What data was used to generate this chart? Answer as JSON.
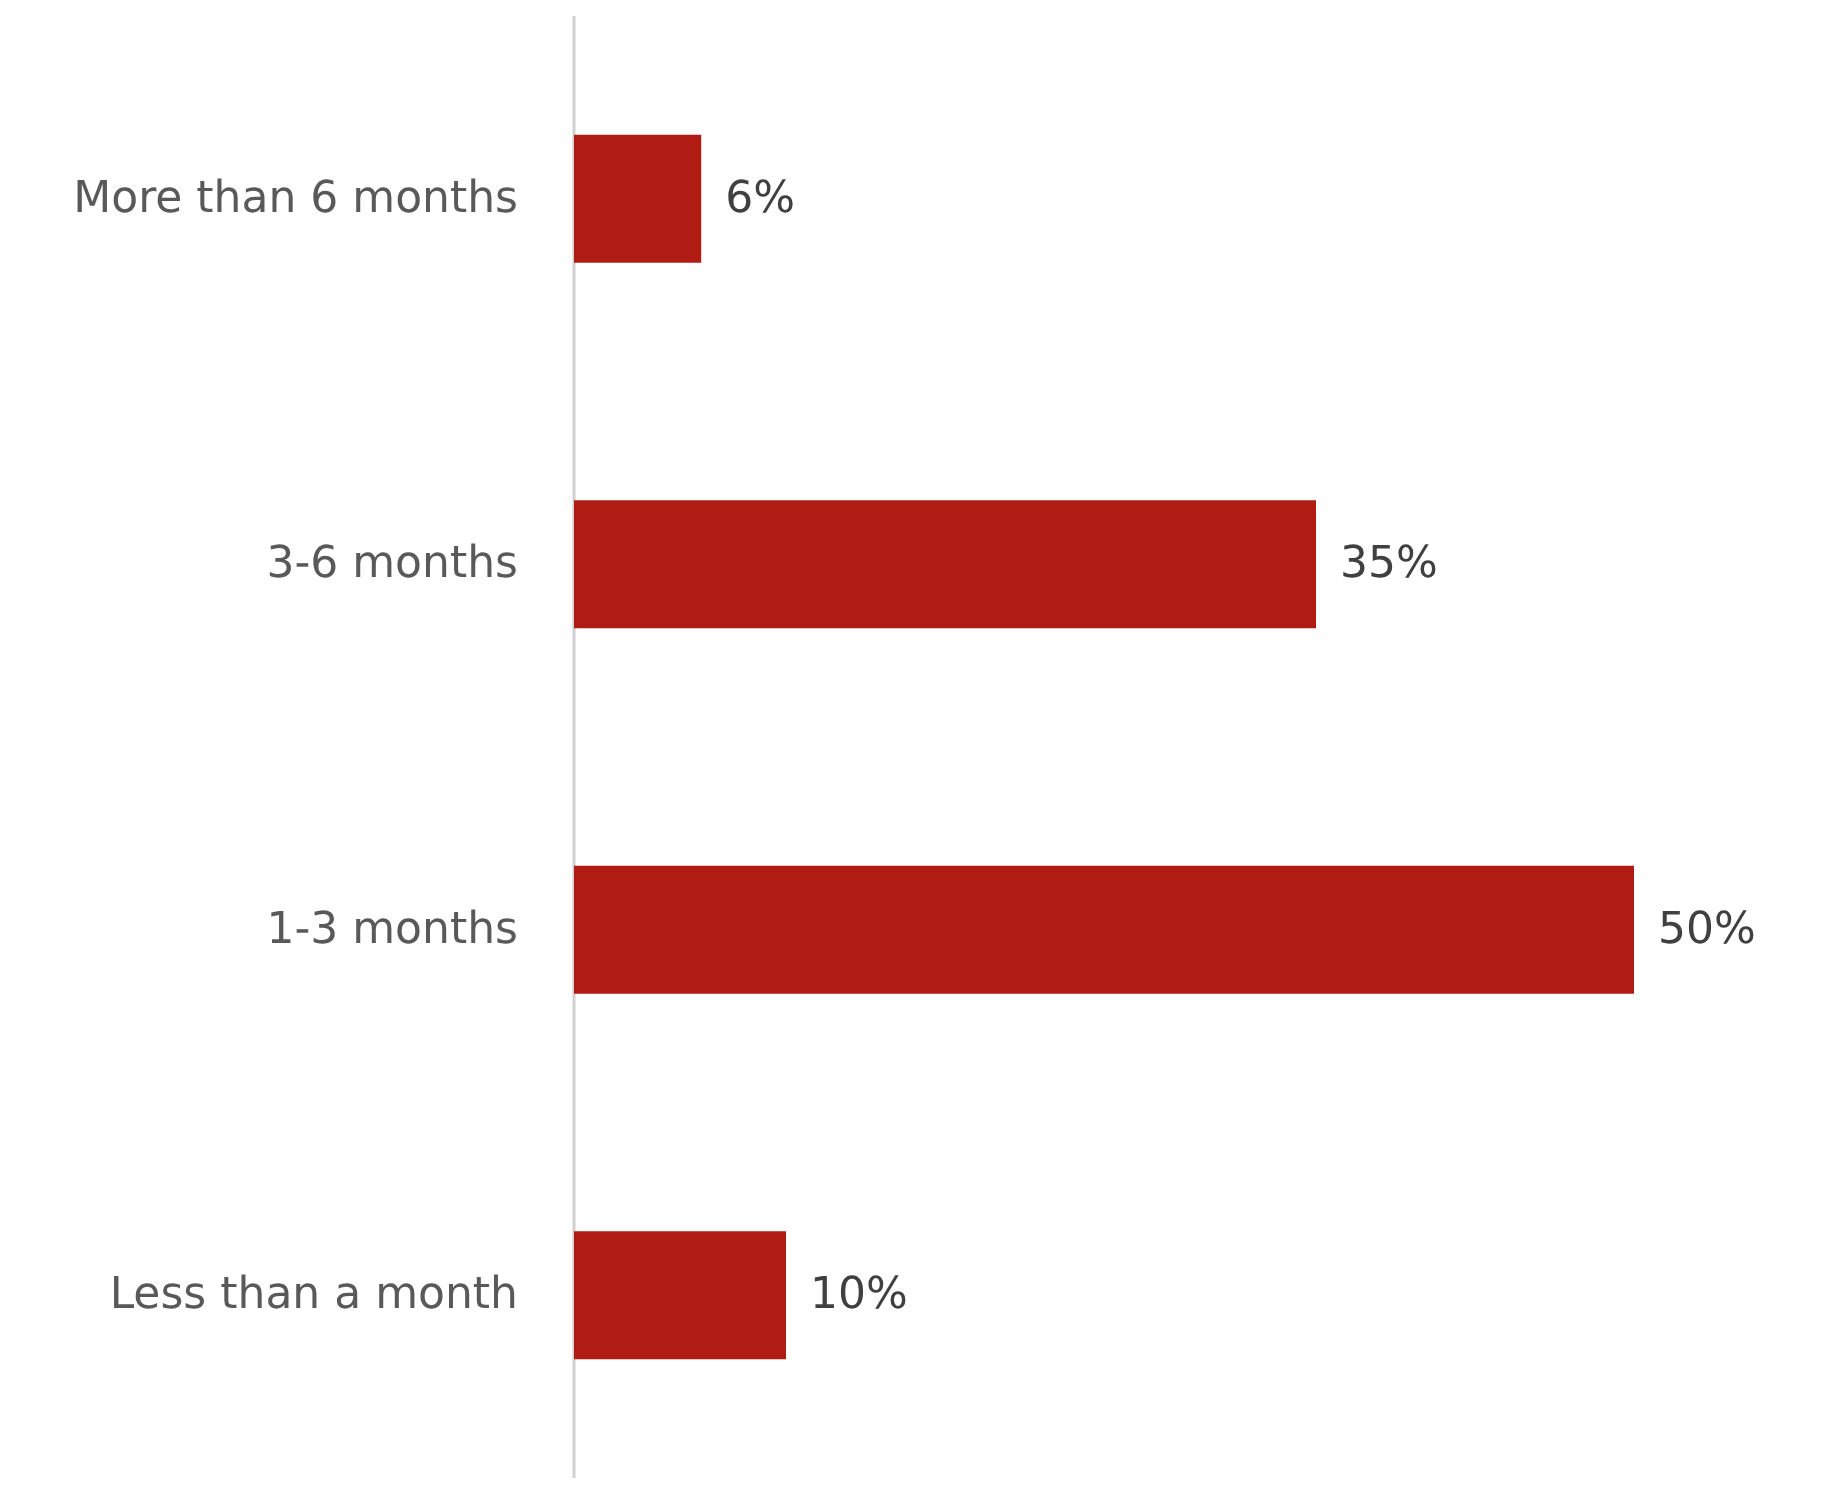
{
  "chart_data": {
    "type": "bar",
    "orientation": "horizontal",
    "categories": [
      "More than 6 months",
      "3-6 months",
      "1-3 months",
      "Less than a month"
    ],
    "values": [
      6,
      35,
      50,
      10
    ],
    "value_labels": [
      "6%",
      "35%",
      "50%",
      "10%"
    ],
    "color": "#b01c14",
    "grid": false,
    "tick_labels": "y"
  }
}
